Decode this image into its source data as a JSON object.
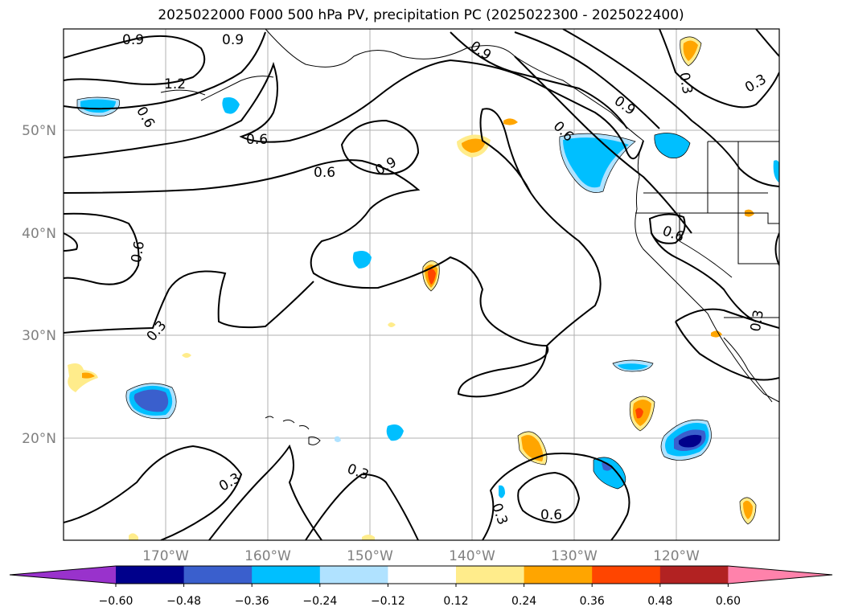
{
  "title": "2025022000 F000 500 hPa PV, precipitation PC (2025022300 - 2025022400)",
  "lat_labels": [
    "50°N",
    "40°N",
    "30°N",
    "20°N"
  ],
  "lon_labels": [
    "170°W",
    "160°W",
    "150°W",
    "140°W",
    "130°W",
    "120°W"
  ],
  "colorbar": {
    "tick_labels": [
      "−0.60",
      "−0.48",
      "−0.36",
      "−0.24",
      "−0.12",
      "0.12",
      "0.24",
      "0.36",
      "0.48",
      "0.60"
    ],
    "colors": [
      "#9932cc",
      "#00008b",
      "#3a5fcd",
      "#00bfff",
      "#b0e2ff",
      "#ffffff",
      "#ffec8b",
      "#ffa500",
      "#ff4500",
      "#b22222",
      "#ff82ab"
    ]
  },
  "contour_labels": [
    "0.9",
    "0.9",
    "1.2",
    "0.6",
    "0.6",
    "0.6",
    "0.9",
    "0.9",
    "0.9",
    "0.6",
    "0.3",
    "0.3",
    "0.6",
    "0.6",
    "0.3",
    "0.3",
    "0.3",
    "0.3",
    "0.6",
    "0.3"
  ]
}
